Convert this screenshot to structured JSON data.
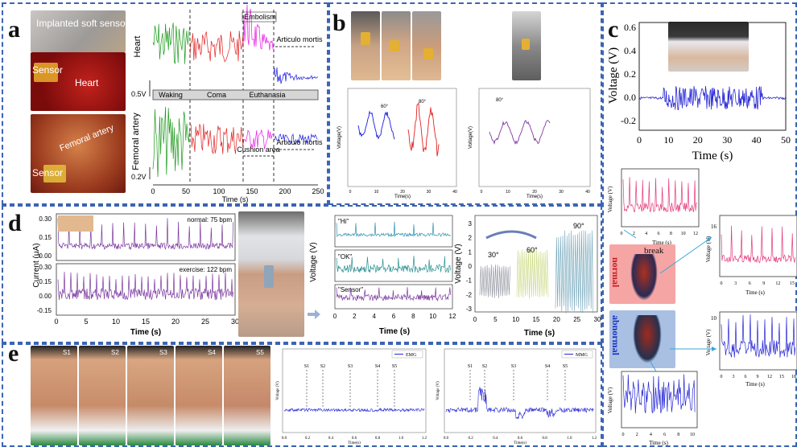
{
  "panels": {
    "a": "a",
    "b": "b",
    "c": "c",
    "d": "d",
    "e": "e"
  },
  "colors": {
    "green": "#1a9a1a",
    "red": "#e32222",
    "magenta": "#e81ce8",
    "blue": "#1818e0",
    "purple": "#7d3aa0",
    "teal": "#2a9090",
    "pink": "#e4397a",
    "navy": "#2727d6"
  },
  "a": {
    "photo_labels": {
      "implanted": "Implanted  soft sensor",
      "sensor1": "Sensor",
      "heart": "Heart",
      "femoral": "Femoral artery",
      "sensor2": "Sensor"
    },
    "chart": {
      "ylabel_top": "Heart",
      "ylabel_bottom": "Femoral\nartery",
      "xlabel": "Time (s)",
      "xticks": [
        "0",
        "50",
        "100",
        "150",
        "200",
        "250"
      ],
      "phases": [
        "Waking",
        "Coma",
        "Euthanasia"
      ],
      "annotations": {
        "embolism": "Embolism",
        "articulo1": "Articulo\nmortis",
        "cushion": "Cushion\narea",
        "articulo2": "Articulo\nmortis"
      },
      "scale_top": "0.5V",
      "scale_bottom": "0.2V"
    }
  },
  "b": {
    "chart1": {
      "ylabel": "Voltage(V)",
      "xlabel": "Time(s)",
      "angles": [
        "60°",
        "80°"
      ],
      "xticks": [
        "0",
        "10",
        "20",
        "30",
        "40"
      ],
      "yticks": [
        "1.0",
        "0.8",
        "0.6",
        "0.4",
        "0.2",
        "0.0"
      ]
    },
    "chart2": {
      "ylabel": "Voltage(V)",
      "xlabel": "Time(s)",
      "angles": [
        "80°"
      ],
      "xticks": [
        "0",
        "10",
        "20",
        "30",
        "40"
      ],
      "yticks": [
        "1.0",
        "0.8",
        "0.6",
        "0.4",
        "0.2",
        "0.0"
      ]
    }
  },
  "c": {
    "main": {
      "ylabel": "Voltage (V)",
      "xlabel": "Time (s)",
      "yticks": [
        "0.6",
        "0.4",
        "0.2",
        "0.0",
        "-0.2"
      ],
      "xticks": [
        "0",
        "10",
        "20",
        "30",
        "40",
        "50"
      ]
    },
    "pink": {
      "ylabel": "Voltage (V)",
      "xlabel": "Time (s)",
      "xticks": [
        "0",
        "2",
        "4",
        "6",
        "8",
        "10",
        "12"
      ]
    },
    "pink2": {
      "ylabel": "Voltage (V)",
      "xlabel": "Time (s)",
      "xticks": [
        "0",
        "3",
        "6",
        "9",
        "12",
        "15"
      ],
      "ytick": "16"
    },
    "blue2": {
      "ylabel": "Voltage (V)",
      "xlabel": "Time (s)",
      "xticks": [
        "0",
        "3",
        "6",
        "9",
        "12",
        "15",
        "18"
      ],
      "ytick": "10"
    },
    "blue3": {
      "ylabel": "Voltage (V)",
      "xlabel": "Time (s)",
      "xticks": [
        "0",
        "2",
        "4",
        "6",
        "8",
        "10"
      ]
    },
    "normal": "normal",
    "abnormal": "abnormal",
    "break": "break"
  },
  "d": {
    "current": {
      "ylabel": "Current (μA)",
      "xlabel": "Time (s)",
      "note1": "normal: 75 bpm",
      "note2": "exercise: 122 bpm",
      "xticks": [
        "0",
        "5",
        "10",
        "15",
        "20",
        "25",
        "30"
      ],
      "yticks_top": [
        "0.30",
        "0.15",
        "0.00"
      ],
      "yticks_bottom": [
        "0.30",
        "0.15",
        "0.00",
        "-0.15"
      ]
    },
    "voice": {
      "ylabel": "Voltage (V)",
      "xlabel": "Time (s)",
      "words": [
        "\"Hi\"",
        "\"OK\"",
        "\"Sensor\""
      ],
      "xticks": [
        "0",
        "2",
        "4",
        "6",
        "8",
        "10",
        "12"
      ]
    },
    "bend": {
      "ylabel": "Voltage (V)",
      "xlabel": "Time (s)",
      "angles": [
        "30°",
        "60°",
        "90°"
      ],
      "xticks": [
        "0",
        "5",
        "10",
        "15",
        "20",
        "25",
        "30"
      ],
      "yticks": [
        "3",
        "2",
        "1",
        "0",
        "-1",
        "-2",
        "-3"
      ]
    }
  },
  "e": {
    "steps": [
      "S1",
      "S2",
      "S3",
      "S4",
      "S5"
    ],
    "emg": {
      "legend": "EMG",
      "ylabel": "Voltage (V)",
      "xlabel": "Time(s)",
      "xticks": [
        "0.0",
        "0.2",
        "0.4",
        "0.6",
        "0.8",
        "1.0",
        "1.2"
      ]
    },
    "mmg": {
      "legend": "MMG",
      "ylabel": "Voltage (V)",
      "xlabel": "Time(s)",
      "xticks": [
        "0.0",
        "0.2",
        "0.4",
        "0.6",
        "0.8",
        "1.0",
        "1.2"
      ]
    }
  }
}
